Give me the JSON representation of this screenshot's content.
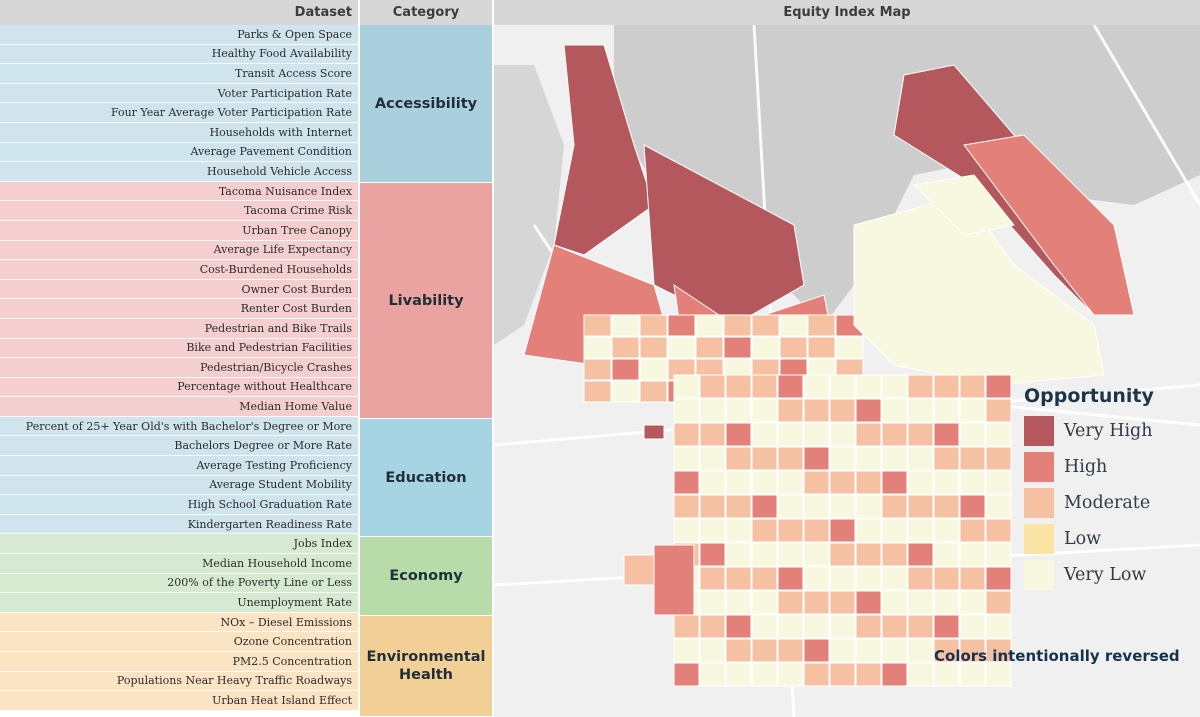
{
  "header": {
    "dataset": "Dataset",
    "category": "Category",
    "map": "Equity Index Map"
  },
  "datasets": [
    {
      "label": "Parks & Open Space",
      "group": "acc"
    },
    {
      "label": "Healthy Food Availability",
      "group": "acc"
    },
    {
      "label": "Transit Access Score",
      "group": "acc"
    },
    {
      "label": "Voter Participation Rate",
      "group": "acc"
    },
    {
      "label": "Four Year Average Voter Participation Rate",
      "group": "acc"
    },
    {
      "label": "Households with Internet",
      "group": "acc"
    },
    {
      "label": "Average Pavement Condition",
      "group": "acc"
    },
    {
      "label": "Household Vehicle Access",
      "group": "acc"
    },
    {
      "label": "Tacoma Nuisance Index",
      "group": "liv"
    },
    {
      "label": "Tacoma Crime Risk",
      "group": "liv"
    },
    {
      "label": "Urban Tree Canopy",
      "group": "liv"
    },
    {
      "label": "Average Life Expectancy",
      "group": "liv"
    },
    {
      "label": "Cost-Burdened Households",
      "group": "liv"
    },
    {
      "label": "Owner Cost Burden",
      "group": "liv"
    },
    {
      "label": "Renter Cost Burden",
      "group": "liv"
    },
    {
      "label": "Pedestrian and Bike Trails",
      "group": "liv"
    },
    {
      "label": "Bike and Pedestrian Facilities",
      "group": "liv"
    },
    {
      "label": "Pedestrian/Bicycle Crashes",
      "group": "liv"
    },
    {
      "label": "Percentage without Healthcare",
      "group": "liv"
    },
    {
      "label": "Median Home Value",
      "group": "liv"
    },
    {
      "label": "Percent of 25+ Year Old's with Bachelor's Degree or More",
      "group": "edu"
    },
    {
      "label": "Bachelors Degree or More Rate",
      "group": "edu"
    },
    {
      "label": "Average Testing Proficiency",
      "group": "edu"
    },
    {
      "label": "Average Student Mobility",
      "group": "edu"
    },
    {
      "label": "High School Graduation Rate",
      "group": "edu"
    },
    {
      "label": "Kindergarten Readiness Rate",
      "group": "edu"
    },
    {
      "label": "Jobs Index",
      "group": "eco"
    },
    {
      "label": "Median Household Income",
      "group": "eco"
    },
    {
      "label": "200% of the Poverty Line or Less",
      "group": "eco"
    },
    {
      "label": "Unemployment Rate",
      "group": "eco"
    },
    {
      "label": "NOx – Diesel Emissions",
      "group": "env"
    },
    {
      "label": "Ozone Concentration",
      "group": "env"
    },
    {
      "label": "PM2.5 Concentration",
      "group": "env"
    },
    {
      "label": "Populations Near Heavy Traffic Roadways",
      "group": "env"
    },
    {
      "label": "Urban Heat Island Effect",
      "group": "env"
    }
  ],
  "categories": [
    {
      "label": "Accessibility",
      "group": "acc"
    },
    {
      "label": "Livability",
      "group": "liv"
    },
    {
      "label": "Education",
      "group": "edu"
    },
    {
      "label": "Economy",
      "group": "eco"
    },
    {
      "label": "Environmental Health",
      "group": "env"
    }
  ],
  "legend": {
    "title": "Opportunity",
    "items": [
      {
        "label": "Very High",
        "color": "#b5585e"
      },
      {
        "label": "High",
        "color": "#e3807a"
      },
      {
        "label": "Moderate",
        "color": "#f6c0a2"
      },
      {
        "label": "Low",
        "color": "#fbe3a6"
      },
      {
        "label": "Very Low",
        "color": "#f8f7df"
      }
    ]
  },
  "note": "Colors intentionally reversed",
  "colors": {
    "very_high": "#b5585e",
    "high": "#e3807a",
    "moderate": "#f6c0a2",
    "low": "#fbe3a6",
    "very_low": "#f8f7df",
    "water": "#cfcfcf",
    "land": "#eeeeee"
  }
}
